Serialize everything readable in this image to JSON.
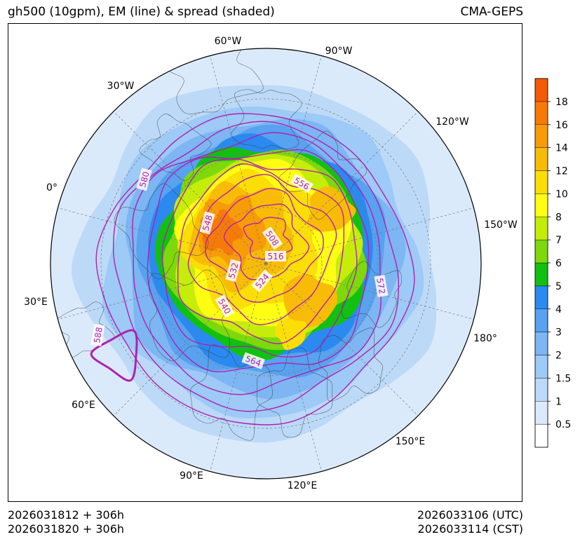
{
  "header": {
    "title": "gh500 (10gpm), EM (line) & spread (shaded)",
    "model": "CMA-GEPS"
  },
  "footer": {
    "init_utc": "2026031812 + 306h",
    "init_cst": "2026031820 + 306h",
    "valid_utc": "2026033106 (UTC)",
    "valid_cst": "2026033114 (CST)"
  },
  "map": {
    "projection": "north-polar-stereographic",
    "longitude_labels": [
      "60°W",
      "90°W",
      "30°W",
      "120°W",
      "0°",
      "150°W",
      "30°E",
      "180°",
      "60°E",
      "150°E",
      "90°E",
      "120°E"
    ]
  },
  "chart_data": {
    "type": "contour-map",
    "title": "gh500 (10gpm), EM (line) & spread (shaded)",
    "contour_variable": "500 hPa geopotential height ensemble mean (10 gpm)",
    "contour_labels": [
      "580",
      "556",
      "548",
      "508",
      "516",
      "532",
      "524",
      "572",
      "540",
      "564",
      "588"
    ],
    "contour_color": "#b020b0",
    "shading_variable": "ensemble spread",
    "colorbar": {
      "levels": [
        0.5,
        1,
        1.5,
        2,
        3,
        4,
        5,
        6,
        7,
        8,
        10,
        12,
        14,
        16,
        18
      ],
      "tick_labels": [
        "0.5",
        "1",
        "1.5",
        "2",
        "3",
        "4",
        "5",
        "6",
        "7",
        "8",
        "10",
        "12",
        "14",
        "16",
        "18"
      ],
      "colors": [
        "#ffffff",
        "#dbeafb",
        "#bcdaf8",
        "#9dcaf6",
        "#7db6f3",
        "#58a2f0",
        "#2a8af0",
        "#12c012",
        "#7ed80c",
        "#c6ec0a",
        "#fffe12",
        "#fbde06",
        "#f8bc06",
        "#f79c06",
        "#f77a06",
        "#f55a06"
      ]
    }
  }
}
